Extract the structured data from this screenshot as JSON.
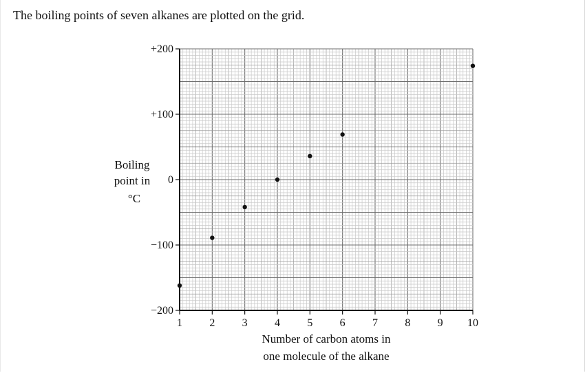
{
  "question": {
    "intro": "The boiling points of seven alkanes are plotted on the grid."
  },
  "chart_data": {
    "type": "scatter",
    "ylabel_lines": [
      "Boiling",
      "point in",
      "°C"
    ],
    "xlabel_lines": [
      "Number of carbon atoms in",
      "one molecule of the alkane"
    ],
    "xlim": [
      1,
      10
    ],
    "ylim": [
      -200,
      200
    ],
    "x_ticks": [
      "1",
      "2",
      "3",
      "4",
      "5",
      "6",
      "7",
      "8",
      "9",
      "10"
    ],
    "y_ticks": [
      {
        "value": 200,
        "label": "+200"
      },
      {
        "value": 100,
        "label": "+100"
      },
      {
        "value": 0,
        "label": "0"
      },
      {
        "value": -100,
        "label": "−100"
      },
      {
        "value": -200,
        "label": "−200"
      }
    ],
    "grid": true,
    "points": [
      {
        "x": 1,
        "y": -162
      },
      {
        "x": 2,
        "y": -89
      },
      {
        "x": 3,
        "y": -42
      },
      {
        "x": 4,
        "y": 0
      },
      {
        "x": 5,
        "y": 36
      },
      {
        "x": 6,
        "y": 69
      },
      {
        "x": 10,
        "y": 174
      }
    ]
  }
}
